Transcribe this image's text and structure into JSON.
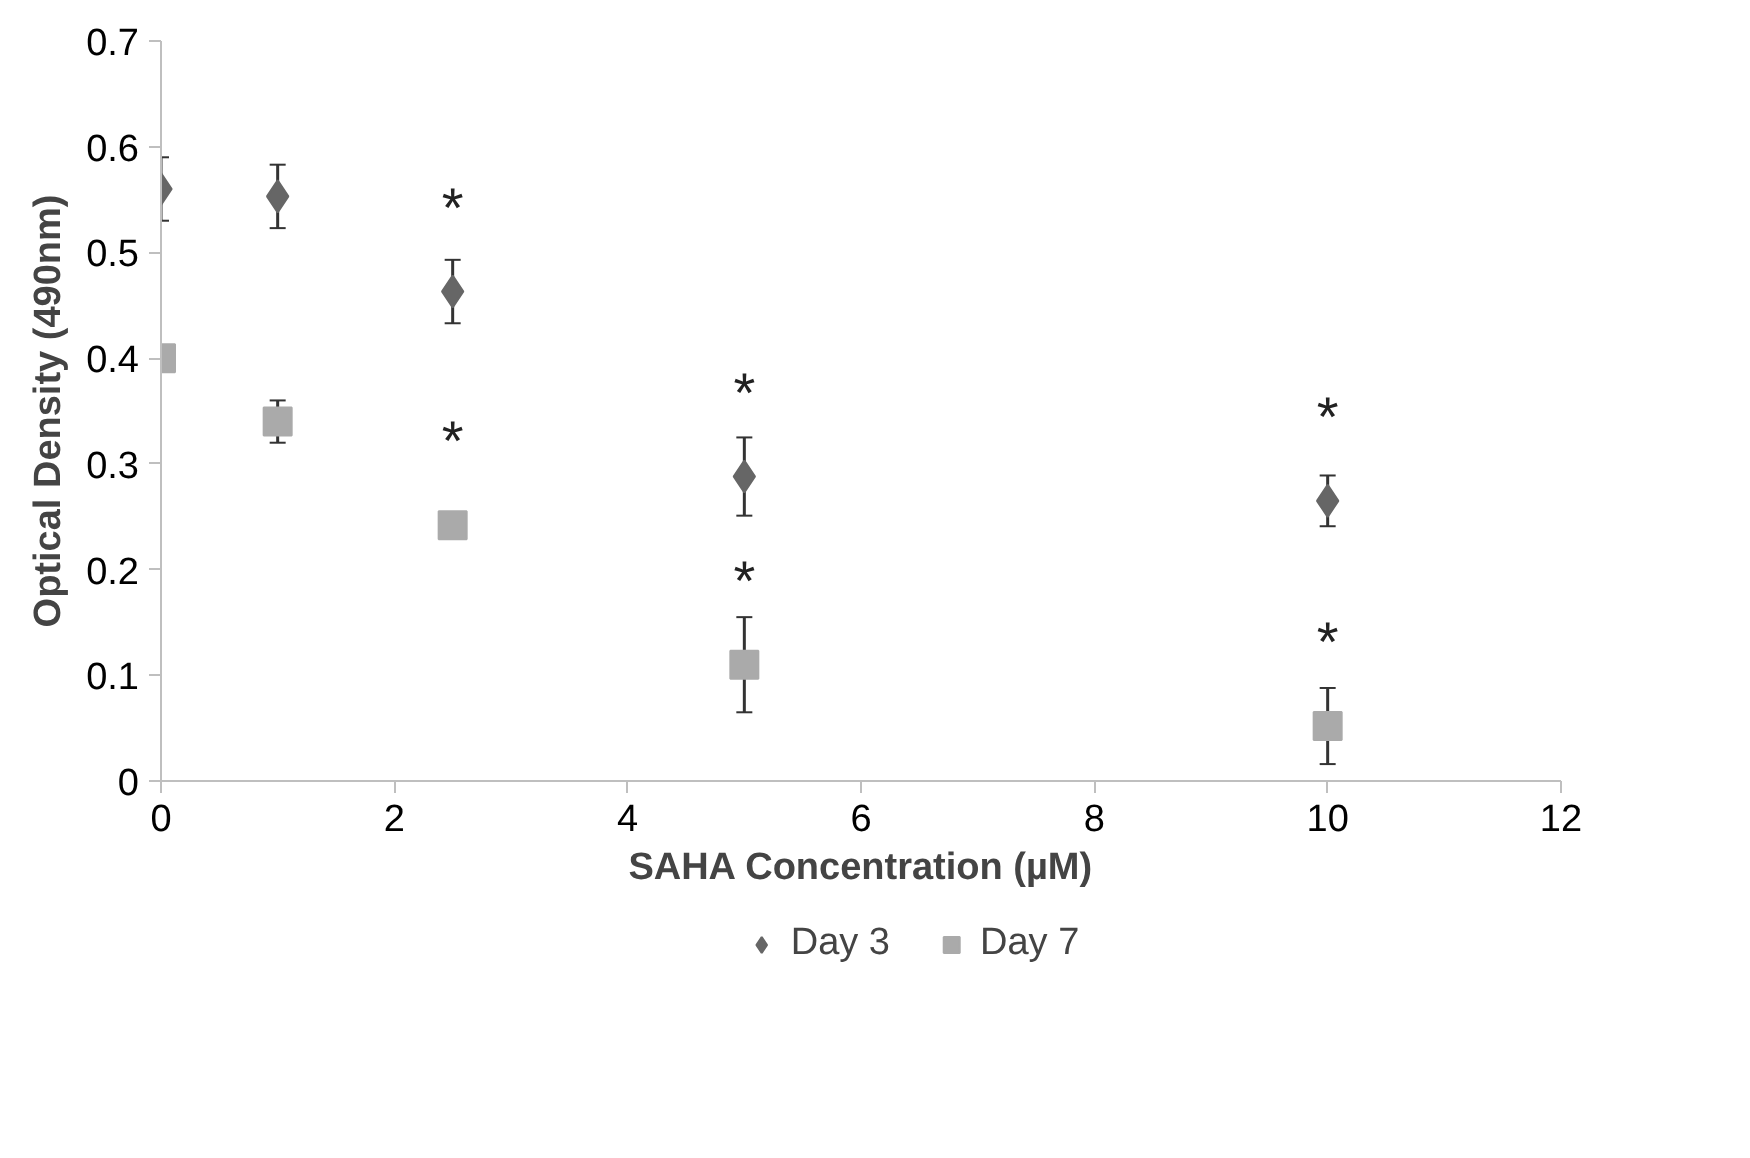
{
  "chart_data": {
    "type": "scatter",
    "xlabel": "SAHA Concentration (µM)",
    "ylabel": "Optical Density (490nm)",
    "xlim": [
      0,
      12
    ],
    "xticks": [
      0,
      2,
      4,
      6,
      8,
      10,
      12
    ],
    "ylim": [
      0,
      0.7
    ],
    "yticks": [
      0,
      0.1,
      0.2,
      0.3,
      0.4,
      0.5,
      0.6,
      0.7
    ],
    "grid": false,
    "legend": "bottom",
    "series": [
      {
        "name": "Day 3",
        "color": "#666666",
        "marker": "diamond",
        "x": [
          0,
          1,
          2.5,
          5,
          10
        ],
        "values": [
          0.56,
          0.553,
          0.463,
          0.288,
          0.265
        ],
        "errors": [
          0.03,
          0.03,
          0.03,
          0.037,
          0.024
        ]
      },
      {
        "name": "Day 7",
        "color": "#aaaaaa",
        "marker": "square",
        "x": [
          0,
          1,
          2.5,
          5,
          10
        ],
        "values": [
          0.4,
          0.34,
          0.242,
          0.11,
          0.052
        ],
        "errors": [
          null,
          0.02,
          null,
          0.045,
          0.036
        ]
      }
    ],
    "annotations": [
      {
        "text": "*",
        "x": 2.5,
        "y": 0.463
      },
      {
        "text": "*",
        "x": 5,
        "y": 0.288
      },
      {
        "text": "*",
        "x": 10,
        "y": 0.265
      },
      {
        "text": "*",
        "x": 2.5,
        "y": 0.242
      },
      {
        "text": "*",
        "x": 5,
        "y": 0.11
      },
      {
        "text": "*",
        "x": 10,
        "y": 0.052
      }
    ]
  }
}
